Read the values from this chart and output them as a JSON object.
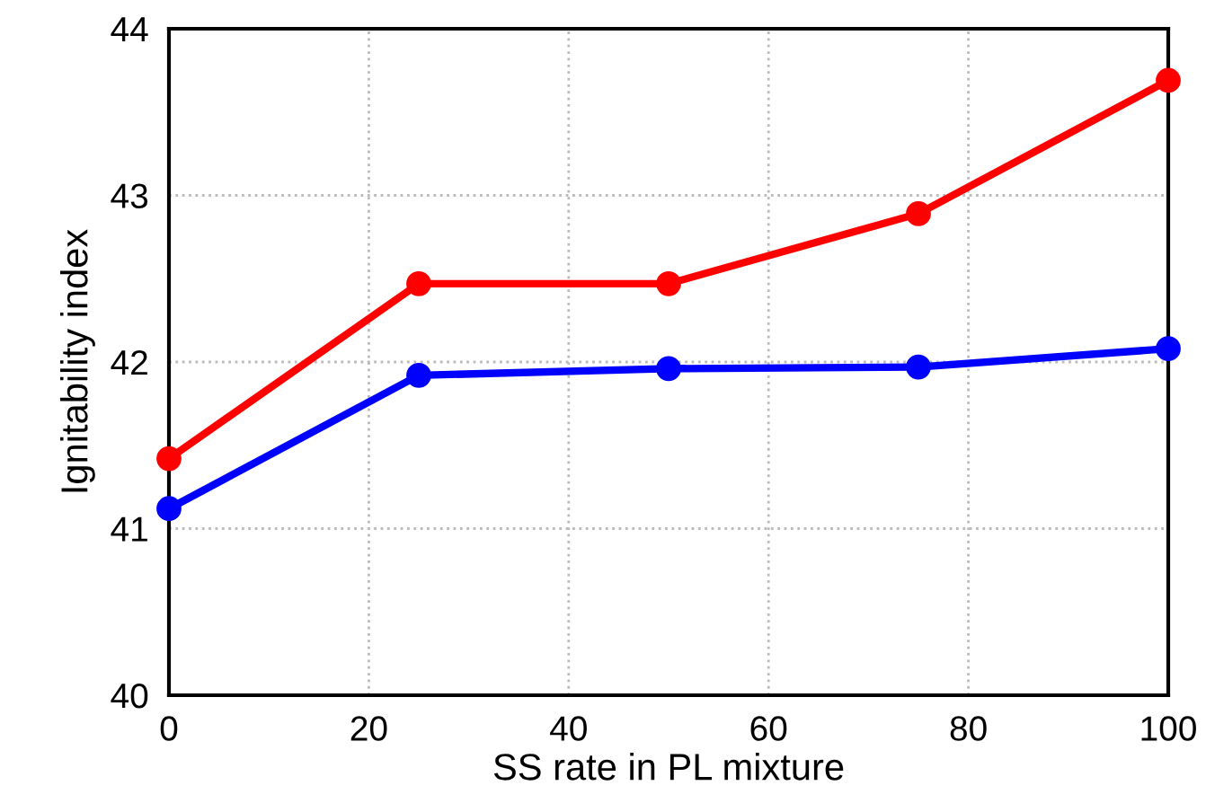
{
  "chart_data": {
    "type": "line",
    "xlabel": "SS rate in PL mixture",
    "ylabel": "Ignitability index",
    "x": [
      0,
      25,
      50,
      75,
      100
    ],
    "series": [
      {
        "color": "#ff0000",
        "values": [
          41.42,
          42.47,
          42.47,
          42.89,
          43.69
        ]
      },
      {
        "color": "#0000ff",
        "values": [
          41.12,
          41.92,
          41.96,
          41.97,
          42.08
        ]
      }
    ],
    "xlim": [
      0,
      100
    ],
    "xticks": [
      0,
      20,
      40,
      60,
      80,
      100
    ],
    "ylim": [
      40,
      44
    ],
    "yticks": [
      40,
      41,
      42,
      43,
      44
    ],
    "grid": true,
    "marker": "circle",
    "line_style": "solid",
    "legend": false
  }
}
